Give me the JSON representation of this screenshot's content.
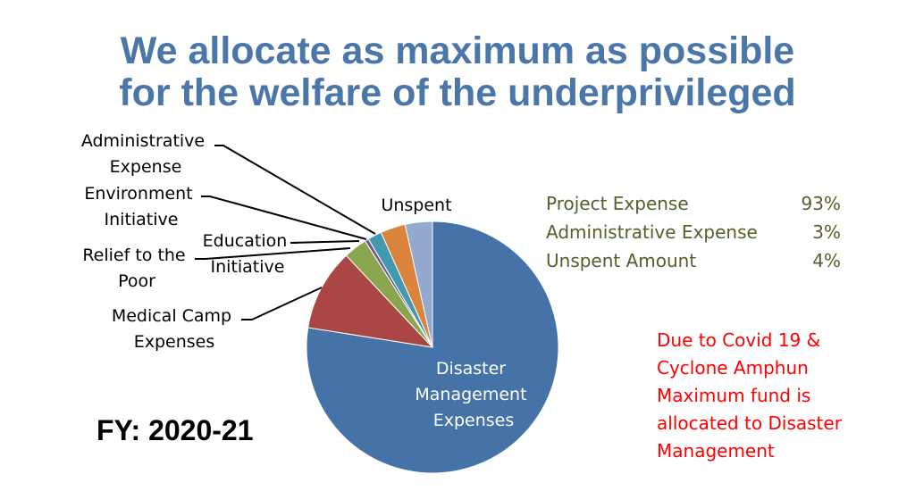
{
  "title": {
    "line1": "We allocate as maximum as possible",
    "line2": "for the welfare of the underprivileged"
  },
  "chart_data": {
    "type": "pie",
    "title": "",
    "slices": [
      {
        "label": "Disaster Management Expenses",
        "value": 77.5,
        "color": "#4572A7"
      },
      {
        "label": "Medical Camp Expenses",
        "value": 10.5,
        "color": "#AA4643"
      },
      {
        "label": "Relief to the Poor",
        "value": 3.0,
        "color": "#89A54E"
      },
      {
        "label": "Education Initiative",
        "value": 0.5,
        "color": "#71588F"
      },
      {
        "label": "Environment Initiative",
        "value": 1.8,
        "color": "#4198AF"
      },
      {
        "label": "Administrative Expense",
        "value": 3.2,
        "color": "#DB843D"
      },
      {
        "label": "Unspent",
        "value": 3.5,
        "color": "#93A9CF"
      }
    ]
  },
  "labels": {
    "administrative": [
      "Administrative",
      "Expense"
    ],
    "environment": [
      "Environment",
      "Initiative"
    ],
    "relief": [
      "Relief to the",
      "Poor"
    ],
    "education": [
      "Education",
      "Initiative"
    ],
    "medical": [
      "Medical Camp",
      "Expenses"
    ],
    "unspent": [
      "Unspent"
    ],
    "disaster": [
      "Disaster",
      "Management",
      "Expenses"
    ]
  },
  "summary": [
    {
      "label": "Project Expense",
      "value": "93%"
    },
    {
      "label": "Administrative Expense",
      "value": "3%"
    },
    {
      "label": "Unspent Amount",
      "value": "4%"
    }
  ],
  "note": [
    "Due to Covid 19 &",
    "Cyclone Amphun",
    "Maximum fund is",
    "allocated to Disaster",
    "Management"
  ],
  "fiscal_year": "FY: 2020-21",
  "colors": {
    "title": "#4A76A9",
    "summary": "#4F6228",
    "note": "#FF0000"
  }
}
